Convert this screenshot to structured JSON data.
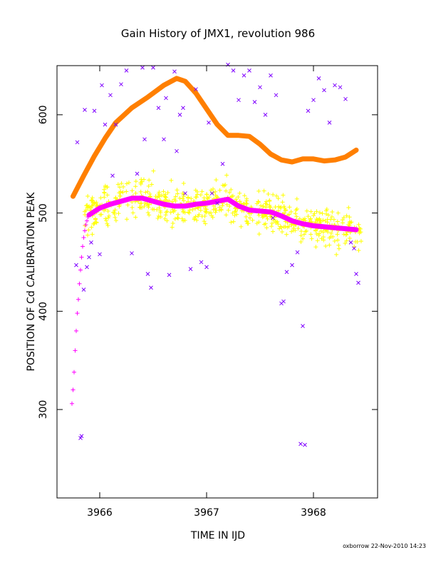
{
  "chart_data": {
    "type": "scatter",
    "title": "Gain History of JMX1, revolution 986",
    "xlabel": "TIME IN IJD",
    "ylabel": "POSITION OF Cd CALIBRATION PEAK",
    "xlim": [
      3965.6,
      3968.6
    ],
    "ylim": [
      210,
      650
    ],
    "xticks": [
      "3966",
      "3967",
      "3968"
    ],
    "xtick_values": [
      3966,
      3967,
      3968
    ],
    "yticks": [
      "300",
      "400",
      "500",
      "600"
    ],
    "ytick_values": [
      300,
      400,
      500,
      600
    ],
    "grid": false,
    "footer": "oxborrow 22-Nov-2010 14:23",
    "colors": {
      "orange_line": "#ff7f00",
      "magenta_line": "#ff00ff",
      "yellow_points": "#ffff00",
      "purple_points": "#7f00ff"
    },
    "series": [
      {
        "style": "thick-line",
        "color": "#ff7f00",
        "x": [
          3965.75,
          3965.85,
          3965.95,
          3966.05,
          3966.15,
          3966.3,
          3966.45,
          3966.6,
          3966.72,
          3966.8,
          3966.9,
          3967.0,
          3967.1,
          3967.2,
          3967.3,
          3967.4,
          3967.5,
          3967.6,
          3967.7,
          3967.8,
          3967.9,
          3968.0,
          3968.1,
          3968.2,
          3968.3,
          3968.4
        ],
        "y": [
          517,
          538,
          558,
          576,
          592,
          607,
          618,
          630,
          637,
          634,
          622,
          606,
          590,
          579,
          579,
          578,
          570,
          560,
          554,
          552,
          555,
          555,
          553,
          554,
          557,
          564
        ]
      },
      {
        "style": "thick-line",
        "color": "#ff00ff",
        "x": [
          3965.9,
          3966.0,
          3966.1,
          3966.2,
          3966.3,
          3966.4,
          3966.5,
          3966.6,
          3966.7,
          3966.8,
          3966.9,
          3967.0,
          3967.1,
          3967.2,
          3967.3,
          3967.4,
          3967.5,
          3967.6,
          3967.7,
          3967.8,
          3967.9,
          3968.0,
          3968.1,
          3968.2,
          3968.3,
          3968.4
        ],
        "y": [
          498,
          505,
          509,
          512,
          515,
          515,
          512,
          509,
          507,
          507,
          509,
          510,
          512,
          514,
          507,
          503,
          502,
          501,
          497,
          492,
          489,
          487,
          486,
          485,
          484,
          483
        ]
      },
      {
        "style": "plus-markers",
        "color": "#ff00ff",
        "x": [
          3965.74,
          3965.75,
          3965.76,
          3965.77,
          3965.78,
          3965.79,
          3965.8,
          3965.81,
          3965.82,
          3965.83,
          3965.84,
          3965.85,
          3965.86,
          3965.87,
          3965.88,
          3965.89,
          3965.9
        ],
        "y": [
          306,
          320,
          338,
          360,
          380,
          398,
          412,
          428,
          442,
          455,
          466,
          475,
          482,
          488,
          492,
          496,
          498
        ]
      },
      {
        "style": "plus-cloud",
        "color": "#ffff00",
        "x_range": [
          3965.85,
          3968.45
        ],
        "n": 650,
        "spread": 14
      },
      {
        "style": "x-markers",
        "color": "#7f00ff",
        "x": [
          3965.78,
          3965.79,
          3965.82,
          3965.83,
          3965.85,
          3965.86,
          3965.88,
          3965.9,
          3965.92,
          3965.95,
          3966.0,
          3966.02,
          3966.05,
          3966.1,
          3966.12,
          3966.2,
          3966.25,
          3966.3,
          3966.35,
          3966.4,
          3966.45,
          3966.48,
          3966.5,
          3966.55,
          3966.6,
          3966.62,
          3966.65,
          3966.7,
          3966.72,
          3966.75,
          3966.78,
          3966.8,
          3966.85,
          3966.9,
          3966.95,
          3967.0,
          3967.02,
          3967.05,
          3967.1,
          3967.15,
          3967.2,
          3967.25,
          3967.3,
          3967.35,
          3967.4,
          3967.45,
          3967.5,
          3967.55,
          3967.6,
          3967.62,
          3967.65,
          3967.7,
          3967.75,
          3967.8,
          3967.85,
          3967.9,
          3967.92,
          3967.95,
          3968.0,
          3968.05,
          3968.1,
          3968.15,
          3968.2,
          3968.25,
          3968.3,
          3968.35,
          3968.38,
          3968.4,
          3968.42,
          3967.72,
          3967.88,
          3966.15,
          3966.42
        ],
        "y": [
          447,
          572,
          271,
          273,
          422,
          605,
          445,
          455,
          470,
          604,
          458,
          630,
          590,
          620,
          538,
          631,
          645,
          459,
          540,
          648,
          438,
          424,
          648,
          607,
          575,
          617,
          437,
          644,
          563,
          600,
          607,
          520,
          443,
          626,
          450,
          445,
          592,
          520,
          510,
          550,
          651,
          645,
          615,
          640,
          645,
          613,
          628,
          600,
          640,
          495,
          620,
          408,
          440,
          447,
          460,
          385,
          264,
          604,
          615,
          637,
          625,
          592,
          630,
          628,
          616,
          470,
          464,
          438,
          429,
          410,
          265,
          590,
          575
        ]
      }
    ]
  }
}
